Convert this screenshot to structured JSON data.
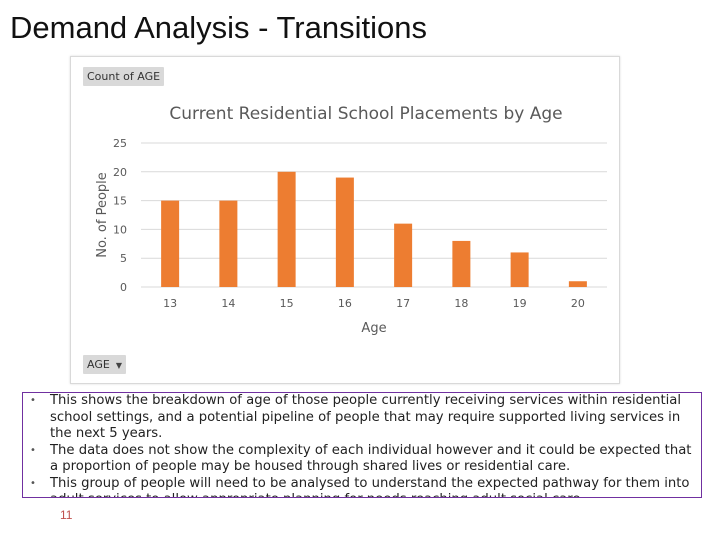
{
  "slide": {
    "title": "Demand Analysis - Transitions",
    "page_number": "11"
  },
  "pivot": {
    "value_field": "Count of AGE",
    "axis_field": "AGE",
    "dropdown_icon": "triangle-down"
  },
  "colors": {
    "bar": "#ed7d31",
    "gridline": "#d9d9d9",
    "text_box_border": "#7030a0",
    "page_number": "#c0504d"
  },
  "chart_data": {
    "type": "bar",
    "title": "Current Residential School Placements by Age",
    "xlabel": "Age",
    "ylabel": "No. of People",
    "categories": [
      "13",
      "14",
      "15",
      "16",
      "17",
      "18",
      "19",
      "20"
    ],
    "values": [
      15,
      15,
      20,
      19,
      11,
      8,
      6,
      1
    ],
    "ylim": [
      0,
      25
    ],
    "yticks": [
      "0",
      "5",
      "10",
      "15",
      "20",
      "25"
    ],
    "grid": true,
    "legend": "none"
  },
  "notes": {
    "bullets": [
      "This shows the breakdown of age of those people currently receiving services within residential school settings, and a potential pipeline of people that may require supported living services in the next 5 years.",
      "The data does not show the complexity of each individual however and it could be expected that a proportion of people may be housed through shared lives or residential care.",
      "This group of people will need to be analysed to understand the expected pathway for them into adult services to allow appropriate planning for needs reaching adult social care."
    ],
    "bullet_symbol": "•"
  }
}
